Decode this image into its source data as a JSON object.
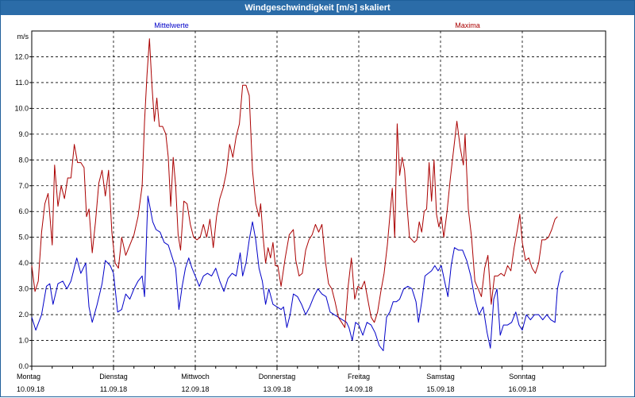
{
  "window": {
    "title": "Windgeschwindigkeit [m/s] skaliert"
  },
  "colors": {
    "mittel": "#0000c8",
    "maxima": "#aa0000",
    "grid": "#000000",
    "title_bg": "#2b6ca8"
  },
  "chart_data": {
    "type": "line",
    "title": "Windgeschwindigkeit [m/s] skaliert",
    "ylabel": "m/s",
    "ylim": [
      0,
      13
    ],
    "yticks": [
      "0.0",
      "1.0",
      "2.0",
      "3.0",
      "4.0",
      "5.0",
      "6.0",
      "7.0",
      "8.0",
      "9.0",
      "10.0",
      "11.0",
      "12.0"
    ],
    "xlim": [
      0,
      7
    ],
    "x_ticks": [
      {
        "day": "Montag",
        "date": "10.09.18"
      },
      {
        "day": "Dienstag",
        "date": "11.09.18"
      },
      {
        "day": "Mittwoch",
        "date": "12.09.18"
      },
      {
        "day": "Donnerstag",
        "date": "13.09.18"
      },
      {
        "day": "Freitag",
        "date": "14.09.18"
      },
      {
        "day": "Samstag",
        "date": "15.09.18"
      },
      {
        "day": "Sonntag",
        "date": "16.09.18"
      }
    ],
    "grid": true,
    "series": [
      {
        "name": "Mittelwerte",
        "color": "#0000c8",
        "points": [
          [
            0.0,
            1.9
          ],
          [
            0.05,
            1.4
          ],
          [
            0.12,
            2.0
          ],
          [
            0.18,
            3.1
          ],
          [
            0.22,
            3.2
          ],
          [
            0.26,
            2.4
          ],
          [
            0.32,
            3.2
          ],
          [
            0.38,
            3.3
          ],
          [
            0.43,
            3.0
          ],
          [
            0.48,
            3.3
          ],
          [
            0.55,
            4.2
          ],
          [
            0.6,
            3.6
          ],
          [
            0.66,
            4.0
          ],
          [
            0.7,
            2.3
          ],
          [
            0.74,
            1.7
          ],
          [
            0.8,
            2.4
          ],
          [
            0.86,
            3.2
          ],
          [
            0.9,
            4.1
          ],
          [
            0.96,
            3.9
          ],
          [
            1.0,
            3.6
          ],
          [
            1.05,
            2.1
          ],
          [
            1.1,
            2.2
          ],
          [
            1.15,
            2.8
          ],
          [
            1.2,
            2.6
          ],
          [
            1.25,
            3.0
          ],
          [
            1.3,
            3.3
          ],
          [
            1.35,
            3.5
          ],
          [
            1.38,
            2.7
          ],
          [
            1.42,
            6.6
          ],
          [
            1.48,
            5.6
          ],
          [
            1.52,
            5.3
          ],
          [
            1.57,
            5.2
          ],
          [
            1.62,
            4.8
          ],
          [
            1.67,
            4.7
          ],
          [
            1.72,
            4.2
          ],
          [
            1.76,
            3.8
          ],
          [
            1.8,
            2.2
          ],
          [
            1.84,
            3.1
          ],
          [
            1.88,
            3.8
          ],
          [
            1.92,
            4.2
          ],
          [
            1.96,
            3.8
          ],
          [
            2.0,
            3.5
          ],
          [
            2.05,
            3.1
          ],
          [
            2.1,
            3.5
          ],
          [
            2.15,
            3.6
          ],
          [
            2.2,
            3.5
          ],
          [
            2.25,
            3.8
          ],
          [
            2.3,
            3.3
          ],
          [
            2.35,
            2.9
          ],
          [
            2.4,
            3.4
          ],
          [
            2.45,
            3.6
          ],
          [
            2.5,
            3.5
          ],
          [
            2.55,
            4.4
          ],
          [
            2.58,
            3.5
          ],
          [
            2.62,
            4.0
          ],
          [
            2.66,
            4.9
          ],
          [
            2.7,
            5.6
          ],
          [
            2.74,
            4.9
          ],
          [
            2.78,
            3.8
          ],
          [
            2.82,
            3.3
          ],
          [
            2.86,
            2.4
          ],
          [
            2.9,
            3.0
          ],
          [
            2.95,
            2.4
          ],
          [
            3.0,
            2.3
          ],
          [
            3.05,
            2.2
          ],
          [
            3.08,
            2.3
          ],
          [
            3.12,
            1.5
          ],
          [
            3.16,
            2.0
          ],
          [
            3.2,
            2.8
          ],
          [
            3.25,
            2.7
          ],
          [
            3.3,
            2.4
          ],
          [
            3.35,
            2.0
          ],
          [
            3.4,
            2.3
          ],
          [
            3.45,
            2.7
          ],
          [
            3.5,
            3.0
          ],
          [
            3.55,
            2.8
          ],
          [
            3.6,
            2.7
          ],
          [
            3.65,
            2.1
          ],
          [
            3.7,
            2.0
          ],
          [
            3.75,
            1.9
          ],
          [
            3.8,
            1.8
          ],
          [
            3.85,
            1.7
          ],
          [
            3.88,
            1.5
          ],
          [
            3.92,
            1.0
          ],
          [
            3.96,
            1.7
          ],
          [
            4.0,
            1.6
          ],
          [
            4.05,
            1.2
          ],
          [
            4.1,
            1.7
          ],
          [
            4.15,
            1.6
          ],
          [
            4.2,
            1.3
          ],
          [
            4.25,
            0.8
          ],
          [
            4.3,
            0.6
          ],
          [
            4.34,
            1.9
          ],
          [
            4.38,
            2.1
          ],
          [
            4.42,
            2.5
          ],
          [
            4.46,
            2.5
          ],
          [
            4.5,
            2.6
          ],
          [
            4.55,
            3.0
          ],
          [
            4.6,
            3.1
          ],
          [
            4.65,
            3.0
          ],
          [
            4.7,
            2.5
          ],
          [
            4.73,
            1.7
          ],
          [
            4.77,
            2.5
          ],
          [
            4.81,
            3.5
          ],
          [
            4.85,
            3.6
          ],
          [
            4.89,
            3.7
          ],
          [
            4.93,
            3.9
          ],
          [
            4.97,
            3.7
          ],
          [
            5.01,
            3.9
          ],
          [
            5.05,
            3.3
          ],
          [
            5.09,
            2.7
          ],
          [
            5.13,
            3.9
          ],
          [
            5.17,
            4.6
          ],
          [
            5.22,
            4.5
          ],
          [
            5.27,
            4.5
          ],
          [
            5.32,
            4.1
          ],
          [
            5.37,
            3.5
          ],
          [
            5.42,
            2.6
          ],
          [
            5.47,
            2.0
          ],
          [
            5.52,
            2.3
          ],
          [
            5.57,
            1.3
          ],
          [
            5.61,
            0.7
          ],
          [
            5.65,
            2.6
          ],
          [
            5.69,
            3.0
          ],
          [
            5.73,
            1.2
          ],
          [
            5.77,
            1.6
          ],
          [
            5.82,
            1.6
          ],
          [
            5.87,
            1.7
          ],
          [
            5.92,
            2.1
          ],
          [
            5.96,
            1.6
          ],
          [
            6.0,
            1.4
          ],
          [
            6.05,
            2.0
          ],
          [
            6.1,
            1.8
          ],
          [
            6.15,
            2.0
          ],
          [
            6.2,
            2.0
          ],
          [
            6.25,
            1.8
          ],
          [
            6.3,
            2.0
          ],
          [
            6.35,
            1.8
          ],
          [
            6.4,
            1.7
          ],
          [
            6.43,
            3.0
          ],
          [
            6.47,
            3.6
          ],
          [
            6.5,
            3.7
          ]
        ]
      },
      {
        "name": "Maxima",
        "color": "#aa0000",
        "points": [
          [
            0.0,
            3.9
          ],
          [
            0.04,
            2.9
          ],
          [
            0.08,
            3.3
          ],
          [
            0.12,
            5.2
          ],
          [
            0.16,
            6.3
          ],
          [
            0.2,
            6.7
          ],
          [
            0.25,
            4.7
          ],
          [
            0.28,
            7.8
          ],
          [
            0.32,
            6.2
          ],
          [
            0.36,
            7.0
          ],
          [
            0.4,
            6.5
          ],
          [
            0.44,
            7.3
          ],
          [
            0.48,
            7.3
          ],
          [
            0.52,
            8.6
          ],
          [
            0.56,
            7.9
          ],
          [
            0.6,
            7.9
          ],
          [
            0.64,
            7.7
          ],
          [
            0.67,
            5.8
          ],
          [
            0.7,
            6.1
          ],
          [
            0.74,
            4.4
          ],
          [
            0.78,
            5.6
          ],
          [
            0.82,
            7.1
          ],
          [
            0.86,
            7.6
          ],
          [
            0.9,
            6.6
          ],
          [
            0.94,
            7.6
          ],
          [
            0.98,
            5.2
          ],
          [
            1.02,
            4.0
          ],
          [
            1.06,
            3.8
          ],
          [
            1.1,
            5.0
          ],
          [
            1.15,
            4.3
          ],
          [
            1.2,
            4.7
          ],
          [
            1.25,
            5.1
          ],
          [
            1.3,
            5.8
          ],
          [
            1.35,
            7.0
          ],
          [
            1.38,
            9.5
          ],
          [
            1.41,
            11.3
          ],
          [
            1.44,
            12.7
          ],
          [
            1.47,
            10.9
          ],
          [
            1.5,
            9.5
          ],
          [
            1.53,
            10.4
          ],
          [
            1.56,
            9.3
          ],
          [
            1.6,
            9.3
          ],
          [
            1.64,
            9.0
          ],
          [
            1.67,
            8.1
          ],
          [
            1.7,
            6.2
          ],
          [
            1.73,
            8.1
          ],
          [
            1.76,
            7.0
          ],
          [
            1.79,
            5.1
          ],
          [
            1.82,
            4.5
          ],
          [
            1.86,
            6.4
          ],
          [
            1.9,
            6.3
          ],
          [
            1.94,
            5.5
          ],
          [
            1.98,
            5.0
          ],
          [
            2.02,
            4.9
          ],
          [
            2.06,
            5.0
          ],
          [
            2.1,
            5.5
          ],
          [
            2.14,
            5.0
          ],
          [
            2.18,
            5.7
          ],
          [
            2.22,
            4.6
          ],
          [
            2.26,
            5.8
          ],
          [
            2.3,
            6.5
          ],
          [
            2.34,
            6.9
          ],
          [
            2.38,
            7.5
          ],
          [
            2.42,
            8.6
          ],
          [
            2.46,
            8.1
          ],
          [
            2.5,
            8.9
          ],
          [
            2.54,
            9.4
          ],
          [
            2.58,
            10.9
          ],
          [
            2.62,
            10.9
          ],
          [
            2.66,
            10.5
          ],
          [
            2.7,
            7.6
          ],
          [
            2.74,
            6.3
          ],
          [
            2.78,
            5.8
          ],
          [
            2.8,
            6.3
          ],
          [
            2.83,
            5.0
          ],
          [
            2.86,
            4.0
          ],
          [
            2.89,
            4.6
          ],
          [
            2.92,
            4.2
          ],
          [
            2.95,
            4.8
          ],
          [
            2.98,
            3.9
          ],
          [
            3.01,
            3.9
          ],
          [
            3.05,
            3.1
          ],
          [
            3.1,
            4.2
          ],
          [
            3.15,
            5.1
          ],
          [
            3.2,
            5.3
          ],
          [
            3.23,
            4.1
          ],
          [
            3.27,
            3.5
          ],
          [
            3.31,
            3.6
          ],
          [
            3.35,
            4.5
          ],
          [
            3.39,
            4.9
          ],
          [
            3.43,
            5.1
          ],
          [
            3.47,
            5.5
          ],
          [
            3.51,
            5.2
          ],
          [
            3.55,
            5.5
          ],
          [
            3.59,
            4.1
          ],
          [
            3.63,
            3.2
          ],
          [
            3.67,
            3.0
          ],
          [
            3.71,
            2.5
          ],
          [
            3.75,
            1.9
          ],
          [
            3.79,
            1.7
          ],
          [
            3.83,
            1.5
          ],
          [
            3.87,
            3.1
          ],
          [
            3.91,
            4.2
          ],
          [
            3.95,
            2.6
          ],
          [
            3.99,
            3.1
          ],
          [
            4.03,
            3.0
          ],
          [
            4.07,
            3.3
          ],
          [
            4.11,
            2.6
          ],
          [
            4.15,
            1.9
          ],
          [
            4.19,
            1.7
          ],
          [
            4.23,
            2.1
          ],
          [
            4.27,
            2.9
          ],
          [
            4.31,
            3.6
          ],
          [
            4.35,
            4.7
          ],
          [
            4.38,
            5.8
          ],
          [
            4.41,
            6.9
          ],
          [
            4.44,
            5.0
          ],
          [
            4.47,
            9.4
          ],
          [
            4.5,
            7.4
          ],
          [
            4.53,
            8.1
          ],
          [
            4.56,
            7.6
          ],
          [
            4.59,
            6.2
          ],
          [
            4.62,
            5.0
          ],
          [
            4.65,
            4.9
          ],
          [
            4.68,
            4.8
          ],
          [
            4.71,
            4.9
          ],
          [
            4.74,
            5.6
          ],
          [
            4.77,
            5.2
          ],
          [
            4.8,
            6.0
          ],
          [
            4.83,
            6.1
          ],
          [
            4.86,
            7.9
          ],
          [
            4.89,
            6.4
          ],
          [
            4.92,
            8.0
          ],
          [
            4.95,
            5.9
          ],
          [
            4.98,
            5.4
          ],
          [
            5.01,
            5.8
          ],
          [
            5.04,
            5.0
          ],
          [
            5.08,
            6.0
          ],
          [
            5.12,
            7.3
          ],
          [
            5.16,
            8.4
          ],
          [
            5.2,
            9.5
          ],
          [
            5.24,
            8.5
          ],
          [
            5.28,
            7.8
          ],
          [
            5.3,
            9.0
          ],
          [
            5.34,
            6.1
          ],
          [
            5.38,
            5.0
          ],
          [
            5.42,
            3.3
          ],
          [
            5.46,
            3.0
          ],
          [
            5.5,
            2.7
          ],
          [
            5.54,
            3.8
          ],
          [
            5.58,
            4.3
          ],
          [
            5.62,
            2.4
          ],
          [
            5.66,
            3.5
          ],
          [
            5.7,
            3.5
          ],
          [
            5.74,
            3.6
          ],
          [
            5.78,
            3.5
          ],
          [
            5.82,
            3.9
          ],
          [
            5.86,
            3.7
          ],
          [
            5.9,
            4.6
          ],
          [
            5.94,
            5.3
          ],
          [
            5.97,
            5.9
          ],
          [
            6.0,
            4.8
          ],
          [
            6.04,
            4.1
          ],
          [
            6.08,
            4.2
          ],
          [
            6.12,
            3.8
          ],
          [
            6.16,
            3.6
          ],
          [
            6.2,
            4.0
          ],
          [
            6.24,
            4.9
          ],
          [
            6.28,
            4.9
          ],
          [
            6.32,
            5.0
          ],
          [
            6.36,
            5.3
          ],
          [
            6.4,
            5.7
          ],
          [
            6.43,
            5.8
          ]
        ]
      }
    ]
  }
}
